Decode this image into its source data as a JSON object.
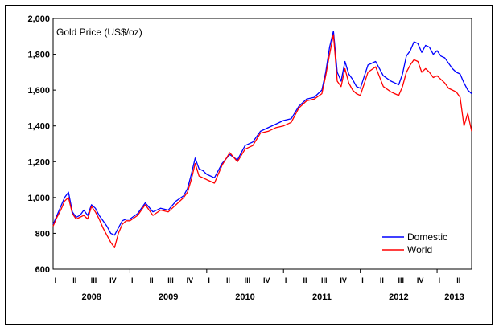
{
  "chart_data": {
    "type": "line",
    "title": "Gold Price (US$/oz)",
    "xlabel": "",
    "ylabel": "",
    "ylim": [
      600,
      2000
    ],
    "y_ticks": [
      "600",
      "800",
      "1,000",
      "1,200",
      "1,400",
      "1,600",
      "1,800",
      "2,000"
    ],
    "y_tick_values": [
      600,
      800,
      1000,
      1200,
      1400,
      1600,
      1800,
      2000
    ],
    "years": [
      "2008",
      "2009",
      "2010",
      "2011",
      "2012",
      "2013"
    ],
    "quarter_labels": [
      "I",
      "II",
      "III",
      "IV"
    ],
    "xlim": [
      2008.0,
      2013.45
    ],
    "grid": false,
    "legend_position": "bottom-right",
    "series": [
      {
        "name": "Domestic",
        "color": "#0000ff",
        "x": [
          2008.0,
          2008.05,
          2008.1,
          2008.15,
          2008.2,
          2008.25,
          2008.3,
          2008.35,
          2008.4,
          2008.45,
          2008.5,
          2008.55,
          2008.6,
          2008.65,
          2008.7,
          2008.75,
          2008.8,
          2008.85,
          2008.9,
          2008.95,
          2009.0,
          2009.1,
          2009.2,
          2009.3,
          2009.4,
          2009.5,
          2009.6,
          2009.7,
          2009.75,
          2009.8,
          2009.85,
          2009.9,
          2009.95,
          2010.0,
          2010.1,
          2010.2,
          2010.3,
          2010.4,
          2010.5,
          2010.6,
          2010.7,
          2010.8,
          2010.9,
          2011.0,
          2011.1,
          2011.2,
          2011.3,
          2011.4,
          2011.5,
          2011.55,
          2011.6,
          2011.65,
          2011.7,
          2011.75,
          2011.8,
          2011.85,
          2011.9,
          2011.95,
          2012.0,
          2012.1,
          2012.2,
          2012.3,
          2012.4,
          2012.45,
          2012.5,
          2012.55,
          2012.6,
          2012.65,
          2012.7,
          2012.75,
          2012.8,
          2012.85,
          2012.9,
          2012.95,
          2013.0,
          2013.05,
          2013.1,
          2013.15,
          2013.2,
          2013.25,
          2013.3,
          2013.35,
          2013.4,
          2013.45
        ],
        "y": [
          850,
          900,
          950,
          1000,
          1030,
          920,
          890,
          900,
          930,
          900,
          960,
          940,
          900,
          870,
          840,
          800,
          790,
          830,
          870,
          880,
          880,
          910,
          970,
          920,
          940,
          930,
          980,
          1010,
          1050,
          1130,
          1220,
          1160,
          1150,
          1130,
          1110,
          1190,
          1240,
          1210,
          1290,
          1310,
          1370,
          1390,
          1410,
          1430,
          1440,
          1510,
          1550,
          1560,
          1600,
          1700,
          1840,
          1930,
          1700,
          1650,
          1760,
          1690,
          1660,
          1620,
          1610,
          1740,
          1760,
          1680,
          1650,
          1640,
          1630,
          1690,
          1790,
          1820,
          1870,
          1860,
          1810,
          1850,
          1840,
          1800,
          1820,
          1790,
          1780,
          1750,
          1720,
          1700,
          1690,
          1640,
          1600,
          1580
        ]
      },
      {
        "name": "World",
        "color": "#ff0000",
        "x": [
          2008.0,
          2008.05,
          2008.1,
          2008.15,
          2008.2,
          2008.25,
          2008.3,
          2008.35,
          2008.4,
          2008.45,
          2008.5,
          2008.55,
          2008.6,
          2008.65,
          2008.7,
          2008.75,
          2008.8,
          2008.85,
          2008.9,
          2008.95,
          2009.0,
          2009.1,
          2009.2,
          2009.3,
          2009.4,
          2009.5,
          2009.6,
          2009.7,
          2009.75,
          2009.8,
          2009.85,
          2009.9,
          2009.95,
          2010.0,
          2010.1,
          2010.2,
          2010.3,
          2010.4,
          2010.5,
          2010.6,
          2010.7,
          2010.8,
          2010.9,
          2011.0,
          2011.1,
          2011.2,
          2011.3,
          2011.4,
          2011.5,
          2011.55,
          2011.6,
          2011.65,
          2011.7,
          2011.75,
          2011.8,
          2011.85,
          2011.9,
          2011.95,
          2012.0,
          2012.1,
          2012.2,
          2012.3,
          2012.4,
          2012.45,
          2012.5,
          2012.55,
          2012.6,
          2012.65,
          2012.7,
          2012.75,
          2012.8,
          2012.85,
          2012.9,
          2012.95,
          2013.0,
          2013.05,
          2013.1,
          2013.15,
          2013.2,
          2013.25,
          2013.3,
          2013.35,
          2013.4,
          2013.45
        ],
        "y": [
          840,
          890,
          930,
          980,
          1000,
          910,
          880,
          890,
          900,
          880,
          950,
          920,
          880,
          830,
          790,
          750,
          720,
          800,
          850,
          870,
          870,
          900,
          960,
          900,
          930,
          920,
          960,
          1000,
          1030,
          1100,
          1190,
          1120,
          1110,
          1100,
          1080,
          1180,
          1250,
          1200,
          1270,
          1290,
          1360,
          1370,
          1390,
          1400,
          1420,
          1500,
          1540,
          1550,
          1580,
          1680,
          1800,
          1910,
          1650,
          1620,
          1720,
          1640,
          1600,
          1580,
          1570,
          1700,
          1730,
          1620,
          1590,
          1580,
          1570,
          1620,
          1700,
          1740,
          1770,
          1760,
          1700,
          1720,
          1700,
          1670,
          1680,
          1660,
          1640,
          1610,
          1600,
          1590,
          1560,
          1400,
          1470,
          1370
        ]
      }
    ]
  }
}
